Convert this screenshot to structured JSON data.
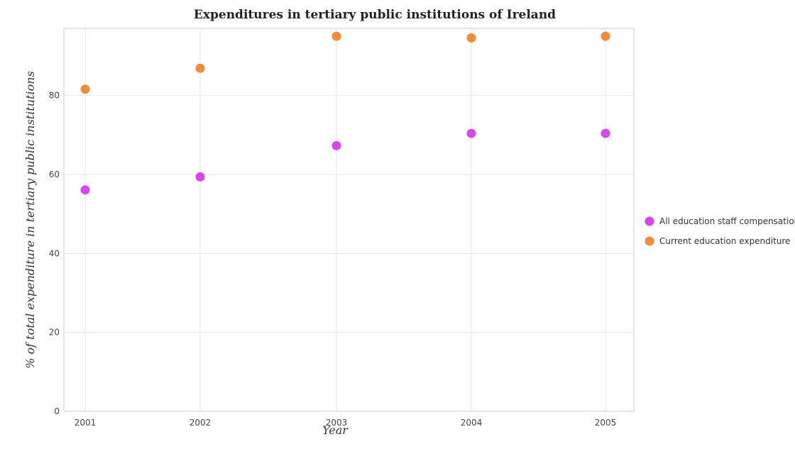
{
  "colors": {
    "staff_comp": "#d946ef",
    "current_exp": "#f28c38"
  },
  "chart_data": {
    "type": "scatter",
    "title": "Expenditures in tertiary public institutions of Ireland",
    "xlabel": "Year",
    "ylabel": "% of total expenditure in tertiary public institutions",
    "categories": [
      "2001",
      "2002",
      "2003",
      "2004",
      "2005"
    ],
    "ylim": [
      0,
      97
    ],
    "yticks": [
      0,
      20,
      40,
      60,
      80
    ],
    "grid": true,
    "legend_position": "right",
    "series": [
      {
        "name": "All education staff compensation",
        "values": [
          56.1,
          59.4,
          67.3,
          70.4,
          70.4
        ]
      },
      {
        "name": "Current education expenditure",
        "values": [
          81.6,
          86.9,
          95.0,
          94.6,
          95.0
        ]
      }
    ]
  }
}
